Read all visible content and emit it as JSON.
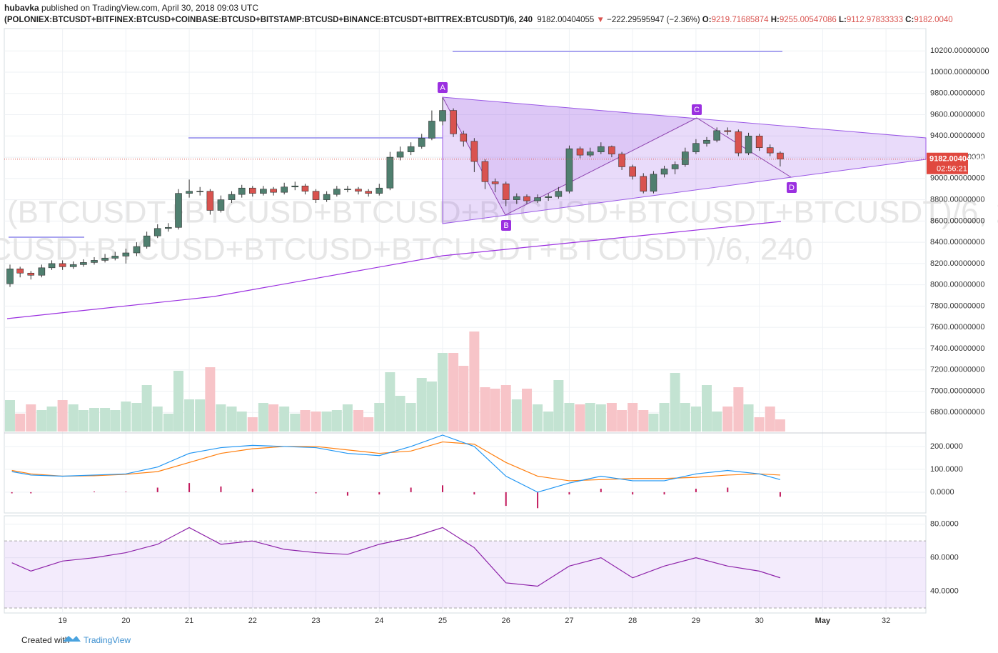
{
  "header": {
    "author": "hubavka",
    "published": "published on TradingView.com, April 30, 2018 09:03 UTC",
    "symbol": "(POLONIEX:BTCUSDT+BITFINEX:BTCUSD+COINBASE:BTCUSD+BITSTAMP:BTCUSD+BINANCE:BTCUSDT+BITTREX:BTCUSDT)/6, 240",
    "last": "9182.00404055",
    "arrow": "▼",
    "change": "−222.29595947 (−2.36%)",
    "ohlc_labels": [
      "O:",
      "H:",
      "L:",
      "C:"
    ],
    "ohlc_values": [
      "9219.71685874",
      "9255.00547086",
      "9112.97833333",
      "9182.0040"
    ]
  },
  "chart_data": {
    "type": "candlestick",
    "watermark": "(BTCUSDT+BTCUSD+BTCUSD+BTCUSD+BTCUSDT+BTCUSDT)/6, 240",
    "pattern_labels": [
      "A",
      "B",
      "C",
      "D"
    ],
    "price_label": "9182.00404055",
    "timer": "02:56:21",
    "up_color": "#4f7f6f",
    "down_color": "#d9534f",
    "vol_up_color": "#c3e3d2",
    "vol_down_color": "#f7c4c8",
    "xlim": [
      18.08,
      32.63
    ],
    "xticks": [
      19,
      20,
      21,
      22,
      23,
      24,
      25,
      26,
      27,
      28,
      29,
      30,
      {
        "value": 31,
        "label": "May"
      },
      32
    ],
    "ylim": [
      6620,
      10410
    ],
    "yticks": [
      {
        "value": 6800,
        "label": "6800.00000000"
      },
      {
        "value": 7000,
        "label": "7000.00000000"
      },
      {
        "value": 7200,
        "label": "7200.00000000"
      },
      {
        "value": 7400,
        "label": "7400.00000000"
      },
      {
        "value": 7600,
        "label": "7600.00000000"
      },
      {
        "value": 7800,
        "label": "7800.00000000"
      },
      {
        "value": 8000,
        "label": "8000.00000000"
      },
      {
        "value": 8200,
        "label": "8200.00000000"
      },
      {
        "value": 8400,
        "label": "8400.00000000"
      },
      {
        "value": 8600,
        "label": "8600.00000000"
      },
      {
        "value": 8800,
        "label": "8800.00000000"
      },
      {
        "value": 9000,
        "label": "9000.00000000"
      },
      {
        "value": 9200,
        "label": "9200.00000000"
      },
      {
        "value": 9400,
        "label": "9400.00000000"
      },
      {
        "value": 9600,
        "label": "9600.00000000"
      },
      {
        "value": 9800,
        "label": "9800.00000000"
      },
      {
        "value": 10000,
        "label": "10000.00000000"
      },
      {
        "value": 10200,
        "label": "10200.00000000"
      }
    ],
    "x": [
      18.17,
      18.33,
      18.5,
      18.67,
      18.83,
      19,
      19.17,
      19.33,
      19.5,
      19.67,
      19.83,
      20,
      20.17,
      20.33,
      20.5,
      20.67,
      20.83,
      21,
      21.17,
      21.33,
      21.5,
      21.67,
      21.83,
      22,
      22.17,
      22.33,
      22.5,
      22.67,
      22.83,
      23,
      23.17,
      23.33,
      23.5,
      23.67,
      23.83,
      24,
      24.17,
      24.33,
      24.5,
      24.67,
      24.83,
      25,
      25.17,
      25.33,
      25.5,
      25.67,
      25.83,
      26,
      26.17,
      26.33,
      26.5,
      26.67,
      26.83,
      27,
      27.17,
      27.33,
      27.5,
      27.67,
      27.83,
      28,
      28.17,
      28.33,
      28.5,
      28.67,
      28.83,
      29,
      29.17,
      29.33,
      29.5,
      29.67,
      29.83,
      30,
      30.17,
      30.33
    ],
    "open": [
      8010,
      8150,
      8110,
      8090,
      8160,
      8200,
      8170,
      8190,
      8210,
      8230,
      8250,
      8270,
      8300,
      8360,
      8460,
      8530,
      8540,
      8860,
      8880,
      8880,
      8700,
      8800,
      8850,
      8910,
      8860,
      8900,
      8870,
      8920,
      8930,
      8880,
      8800,
      8850,
      8900,
      8900,
      8880,
      8860,
      8910,
      9200,
      9250,
      9300,
      9380,
      9540,
      9640,
      9420,
      9350,
      9160,
      8970,
      8950,
      8800,
      8830,
      8790,
      8820,
      8830,
      8880,
      9280,
      9220,
      9250,
      9300,
      9230,
      9110,
      9020,
      8880,
      9040,
      9090,
      9130,
      9250,
      9330,
      9360,
      9450,
      9440,
      9240,
      9400,
      9290,
      9240
    ],
    "high": [
      8190,
      8170,
      8130,
      8190,
      8230,
      8230,
      8220,
      8240,
      8260,
      8290,
      8310,
      8340,
      8400,
      8500,
      8570,
      8580,
      8900,
      8990,
      8920,
      8900,
      8840,
      8880,
      8940,
      8930,
      8930,
      8920,
      8960,
      8970,
      8950,
      8900,
      8880,
      8930,
      8930,
      8920,
      8900,
      8950,
      9250,
      9300,
      9340,
      9420,
      9640,
      9760,
      9660,
      9450,
      9380,
      9180,
      9000,
      8970,
      8860,
      8850,
      8850,
      8860,
      8920,
      9310,
      9300,
      9290,
      9340,
      9310,
      9250,
      9130,
      9050,
      9070,
      9120,
      9160,
      9290,
      9370,
      9390,
      9480,
      9480,
      9460,
      9430,
      9420,
      9320,
      9255
    ],
    "low": [
      7980,
      8070,
      8050,
      8070,
      8140,
      8140,
      8150,
      8170,
      8190,
      8210,
      8230,
      8200,
      8270,
      8340,
      8440,
      8500,
      8520,
      8820,
      8840,
      8660,
      8680,
      8770,
      8820,
      8830,
      8840,
      8840,
      8850,
      8890,
      8850,
      8770,
      8780,
      8830,
      8870,
      8850,
      8830,
      8840,
      8890,
      9170,
      9220,
      9280,
      9360,
      9500,
      9390,
      9300,
      9060,
      8900,
      8870,
      8740,
      8760,
      8760,
      8770,
      8790,
      8810,
      8860,
      9190,
      9200,
      9230,
      9200,
      9080,
      8990,
      8860,
      8860,
      9010,
      9040,
      9110,
      9230,
      9300,
      9340,
      9410,
      9210,
      9220,
      9260,
      9210,
      9113
    ],
    "close": [
      8150,
      8110,
      8090,
      8160,
      8200,
      8170,
      8190,
      8210,
      8230,
      8250,
      8270,
      8300,
      8360,
      8460,
      8530,
      8540,
      8860,
      8880,
      8880,
      8700,
      8800,
      8850,
      8910,
      8860,
      8900,
      8870,
      8920,
      8930,
      8880,
      8800,
      8850,
      8900,
      8900,
      8880,
      8860,
      8910,
      9200,
      9250,
      9300,
      9380,
      9540,
      9640,
      9420,
      9350,
      9160,
      8970,
      8950,
      8800,
      8830,
      8790,
      8820,
      8830,
      8880,
      9280,
      9220,
      9250,
      9300,
      9230,
      9110,
      9020,
      8880,
      9040,
      9090,
      9130,
      9250,
      9330,
      9360,
      9450,
      9440,
      9240,
      9400,
      9290,
      9240,
      9182
    ],
    "volume": [
      44,
      25,
      38,
      30,
      35,
      44,
      38,
      30,
      33,
      33,
      30,
      42,
      40,
      65,
      35,
      25,
      85,
      45,
      45,
      90,
      38,
      35,
      28,
      20,
      40,
      38,
      35,
      25,
      30,
      28,
      28,
      30,
      38,
      30,
      20,
      40,
      83,
      50,
      40,
      75,
      70,
      110,
      110,
      92,
      140,
      62,
      60,
      65,
      45,
      60,
      38,
      28,
      72,
      40,
      38,
      40,
      38,
      40,
      30,
      40,
      30,
      25,
      40,
      82,
      40,
      35,
      65,
      28,
      35,
      62,
      38,
      20,
      35,
      17
    ],
    "macd": {
      "x": [
        18.2,
        18.5,
        19,
        19.5,
        20,
        20.5,
        21,
        21.5,
        22,
        22.5,
        23,
        23.5,
        24,
        24.5,
        25,
        25.5,
        26,
        26.5,
        27,
        27.5,
        28,
        28.5,
        29,
        29.5,
        30,
        30.33
      ],
      "macd": [
        90,
        75,
        70,
        75,
        80,
        110,
        170,
        195,
        205,
        200,
        195,
        170,
        160,
        200,
        250,
        200,
        70,
        0,
        40,
        70,
        50,
        50,
        80,
        95,
        80,
        55
      ],
      "signal": [
        95,
        80,
        70,
        72,
        78,
        90,
        130,
        170,
        190,
        200,
        200,
        185,
        170,
        180,
        220,
        210,
        130,
        70,
        50,
        55,
        60,
        60,
        65,
        75,
        80,
        75
      ],
      "hist": [
        -5,
        -5,
        0,
        3,
        2,
        20,
        40,
        25,
        15,
        0,
        -5,
        -15,
        -10,
        20,
        30,
        -10,
        -60,
        -70,
        -10,
        15,
        -10,
        -10,
        15,
        20,
        0,
        -20
      ],
      "macd_color": "#2196f3",
      "signal_color": "#ff7f0e",
      "hist_color": "#c2185b",
      "ylim": [
        -91,
        253
      ],
      "yticks": [
        {
          "value": 0,
          "label": "0.0000"
        },
        {
          "value": 100,
          "label": "100.0000"
        },
        {
          "value": 200,
          "label": "200.0000"
        }
      ]
    },
    "rsi": {
      "x": [
        18.2,
        18.5,
        19,
        19.5,
        20,
        20.5,
        21,
        21.5,
        22,
        22.5,
        23,
        23.5,
        24,
        24.5,
        25,
        25.5,
        26,
        26.5,
        27,
        27.5,
        28,
        28.5,
        29,
        29.5,
        30,
        30.33
      ],
      "values": [
        57,
        52,
        58,
        60,
        63,
        68,
        78,
        68,
        70,
        65,
        63,
        62,
        68,
        72,
        78,
        66,
        45,
        43,
        55,
        60,
        48,
        55,
        60,
        55,
        52,
        48
      ],
      "color": "#8e24aa",
      "band": [
        30,
        70
      ],
      "ylim": [
        27,
        85
      ],
      "yticks": [
        {
          "value": 40,
          "label": "40.0000"
        },
        {
          "value": 60,
          "label": "60.0000"
        },
        {
          "value": 80,
          "label": "80.0000"
        }
      ]
    }
  },
  "footer": {
    "created": "Created with",
    "brand": "TradingView"
  }
}
